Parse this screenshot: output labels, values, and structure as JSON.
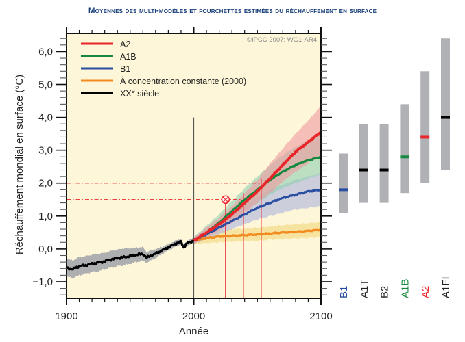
{
  "header": {
    "title": "Moyennes des multi-modèles et fourchettes estimées du réchauffement en surface"
  },
  "chart_data": {
    "type": "line",
    "title": "Moyennes des multi-modèles et fourchettes estimées du réchauffement en surface",
    "xlabel": "Année",
    "ylabel": "Réchauffement mondial en surface (°C)",
    "xlim": [
      1900,
      2100
    ],
    "ylim": [
      -1.5,
      6.55
    ],
    "x_ticks": [
      1900,
      2000,
      2100
    ],
    "x_tick_labels": [
      "1900",
      "2000",
      "2100"
    ],
    "y_ticks": [
      -1,
      0,
      1,
      2,
      3,
      4,
      5,
      6
    ],
    "y_tick_labels": [
      "−1,0",
      "0,0",
      "1,0",
      "2,0",
      "3,0",
      "4,0",
      "5,0",
      "6,0"
    ],
    "copyright": "©IPCC  2007: WG1-AR4",
    "legend_position": "top-left",
    "series": [
      {
        "name": "A2",
        "color": "#e8262a",
        "band_color": "#f09aa0",
        "x": [
          2000,
          2010,
          2020,
          2030,
          2040,
          2050,
          2060,
          2070,
          2080,
          2090,
          2100
        ],
        "values": [
          0.25,
          0.5,
          0.75,
          1.05,
          1.4,
          1.75,
          2.15,
          2.55,
          2.95,
          3.25,
          3.55
        ],
        "lower": [
          0.15,
          0.35,
          0.55,
          0.8,
          1.1,
          1.4,
          1.7,
          2.05,
          2.35,
          2.6,
          2.85
        ],
        "upper": [
          0.35,
          0.65,
          0.95,
          1.3,
          1.7,
          2.1,
          2.6,
          3.05,
          3.5,
          3.9,
          4.35
        ]
      },
      {
        "name": "A1B",
        "color": "#15883f",
        "band_color": "#8fd0b0",
        "x": [
          2000,
          2010,
          2020,
          2030,
          2040,
          2050,
          2060,
          2070,
          2080,
          2090,
          2100
        ],
        "values": [
          0.25,
          0.5,
          0.8,
          1.15,
          1.5,
          1.8,
          2.1,
          2.35,
          2.55,
          2.7,
          2.8
        ],
        "lower": [
          0.15,
          0.35,
          0.6,
          0.85,
          1.15,
          1.4,
          1.65,
          1.85,
          2.0,
          2.15,
          2.25
        ],
        "upper": [
          0.35,
          0.7,
          1.05,
          1.45,
          1.85,
          2.2,
          2.55,
          2.85,
          3.1,
          3.3,
          3.45
        ]
      },
      {
        "name": "B1",
        "color": "#2a4ea2",
        "band_color": "#aeb4e0",
        "x": [
          2000,
          2010,
          2020,
          2030,
          2040,
          2050,
          2060,
          2070,
          2080,
          2090,
          2100
        ],
        "values": [
          0.25,
          0.45,
          0.65,
          0.85,
          1.05,
          1.25,
          1.4,
          1.55,
          1.65,
          1.75,
          1.8
        ],
        "lower": [
          0.15,
          0.3,
          0.45,
          0.6,
          0.75,
          0.9,
          1.0,
          1.1,
          1.2,
          1.25,
          1.3
        ],
        "upper": [
          0.35,
          0.6,
          0.85,
          1.1,
          1.35,
          1.6,
          1.8,
          1.95,
          2.1,
          2.2,
          2.3
        ]
      },
      {
        "name": "À concentration constante (2000)",
        "color": "#f38a1f",
        "band_color": "#f2d77a",
        "x": [
          2000,
          2010,
          2020,
          2030,
          2040,
          2050,
          2060,
          2070,
          2080,
          2090,
          2100
        ],
        "values": [
          0.25,
          0.33,
          0.38,
          0.4,
          0.42,
          0.44,
          0.47,
          0.5,
          0.52,
          0.55,
          0.58
        ],
        "lower": [
          0.15,
          0.18,
          0.2,
          0.22,
          0.24,
          0.25,
          0.28,
          0.3,
          0.32,
          0.34,
          0.36
        ],
        "upper": [
          0.35,
          0.5,
          0.56,
          0.6,
          0.62,
          0.65,
          0.68,
          0.72,
          0.75,
          0.78,
          0.82
        ]
      },
      {
        "name": "XXe siècle",
        "legend_label_main": "XX",
        "legend_label_sup": "e",
        "legend_label_rest": " siècle",
        "color": "#000000",
        "band_color": "#a9abae",
        "x": [
          1900,
          1905,
          1910,
          1915,
          1920,
          1925,
          1930,
          1935,
          1940,
          1945,
          1950,
          1955,
          1960,
          1963,
          1965,
          1970,
          1975,
          1980,
          1985,
          1990,
          1992,
          1995,
          2000
        ],
        "values": [
          -0.58,
          -0.62,
          -0.52,
          -0.5,
          -0.45,
          -0.42,
          -0.38,
          -0.32,
          -0.28,
          -0.25,
          -0.22,
          -0.18,
          -0.15,
          -0.27,
          -0.22,
          -0.15,
          -0.05,
          0.05,
          0.15,
          0.22,
          0.05,
          0.18,
          0.25
        ],
        "lower": [
          -0.85,
          -0.88,
          -0.8,
          -0.75,
          -0.7,
          -0.68,
          -0.62,
          -0.57,
          -0.52,
          -0.5,
          -0.45,
          -0.4,
          -0.36,
          -0.42,
          -0.38,
          -0.28,
          -0.16,
          -0.04,
          0.06,
          0.13,
          -0.02,
          0.1,
          0.18
        ],
        "upper": [
          -0.3,
          -0.35,
          -0.25,
          -0.22,
          -0.18,
          -0.15,
          -0.12,
          -0.06,
          -0.02,
          0.02,
          0.02,
          0.04,
          0.06,
          -0.1,
          -0.06,
          0.0,
          0.06,
          0.14,
          0.24,
          0.31,
          0.12,
          0.26,
          0.32
        ]
      }
    ],
    "reference_lines": {
      "vertical_year": 2000,
      "vertical_from": 4.0,
      "horizontal_dashed": [
        {
          "value": 2.0,
          "until_year": 2052
        },
        {
          "value": 1.5,
          "until_year": 2038
        }
      ],
      "red_verticals": [
        {
          "year": 2025,
          "top": 1.5,
          "marker": "circle-x"
        },
        {
          "year": 2039,
          "top": 1.7
        },
        {
          "year": 2053,
          "top": 2.15
        }
      ]
    },
    "range_bars": {
      "categories": [
        "B1",
        "A1T",
        "B2",
        "A1B",
        "A2",
        "A1FI"
      ],
      "label_colors": [
        "#2a4ea2",
        "#222222",
        "#222222",
        "#15883f",
        "#e8262a",
        "#222222"
      ],
      "best_estimate": [
        1.8,
        2.4,
        2.4,
        2.8,
        3.4,
        4.0
      ],
      "low": [
        1.1,
        1.4,
        1.4,
        1.7,
        2.0,
        2.4
      ],
      "high": [
        2.9,
        3.8,
        3.8,
        4.4,
        5.4,
        6.4
      ],
      "bar_color": "#b0b1b5"
    }
  }
}
